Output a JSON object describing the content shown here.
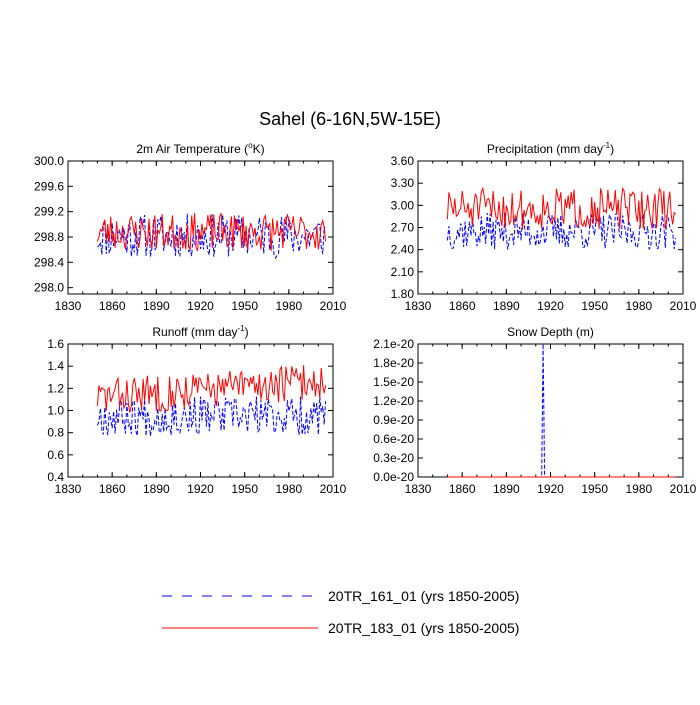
{
  "figure": {
    "title": "Sahel (6-16N,5W-15E)"
  },
  "legend": [
    {
      "label": "20TR_161_01 (yrs 1850-2005)",
      "color": "#0000ff",
      "dash": true
    },
    {
      "label": "20TR_183_01 (yrs 1850-2005)",
      "color": "#ff0000",
      "dash": false
    }
  ],
  "chart_data": [
    {
      "type": "line",
      "title_main": "2m Air Temperature (",
      "title_sup": "o",
      "title_after": "K)",
      "xlim": [
        1830,
        2010
      ],
      "ylim": [
        297.9,
        300.0
      ],
      "xticks": [
        1830,
        1860,
        1890,
        1920,
        1950,
        1980,
        2010
      ],
      "yticks": [
        298.0,
        298.4,
        298.8,
        299.2,
        299.6,
        300.0
      ],
      "ytick_labels": [
        "298.0",
        "298.4",
        "298.8",
        "299.2",
        "299.6",
        "300.0"
      ],
      "series": [
        {
          "name": "20TR_161_01",
          "mean": 298.82,
          "amp": 0.35,
          "seed": 11
        },
        {
          "name": "20TR_183_01",
          "mean": 298.88,
          "amp": 0.3,
          "seed": 23
        }
      ]
    },
    {
      "type": "line",
      "title_main": "Precipitation (mm day",
      "title_sup": "-1",
      "title_after": ")",
      "xlim": [
        1830,
        2010
      ],
      "ylim": [
        1.8,
        3.6
      ],
      "xticks": [
        1830,
        1860,
        1890,
        1920,
        1950,
        1980,
        2010
      ],
      "yticks": [
        1.8,
        2.1,
        2.4,
        2.7,
        3.0,
        3.3,
        3.6
      ],
      "ytick_labels": [
        "1.80",
        "2.10",
        "2.40",
        "2.70",
        "3.00",
        "3.30",
        "3.60"
      ],
      "series": [
        {
          "name": "20TR_161_01",
          "mean": 2.65,
          "amp": 0.25,
          "seed": 37
        },
        {
          "name": "20TR_183_01",
          "mean": 2.95,
          "amp": 0.28,
          "seed": 51
        }
      ]
    },
    {
      "type": "line",
      "title_main": "Runoff (mm day",
      "title_sup": "-1",
      "title_after": ")",
      "xlim": [
        1830,
        2010
      ],
      "ylim": [
        0.4,
        1.6
      ],
      "xticks": [
        1830,
        1860,
        1890,
        1920,
        1950,
        1980,
        2010
      ],
      "yticks": [
        0.4,
        0.6,
        0.8,
        1.0,
        1.2,
        1.4,
        1.6
      ],
      "ytick_labels": [
        "0.4",
        "0.6",
        "0.8",
        "1.0",
        "1.2",
        "1.4",
        "1.6"
      ],
      "series": [
        {
          "name": "20TR_161_01",
          "mean": 0.95,
          "amp": 0.18,
          "seed": 67
        },
        {
          "name": "20TR_183_01",
          "mean": 1.12,
          "amp": 0.17,
          "seed": 83
        }
      ]
    },
    {
      "type": "line",
      "title_main": "Snow Depth (m)",
      "title_sup": "",
      "title_after": "",
      "xlim": [
        1830,
        2010
      ],
      "ylim": [
        0,
        2.1e-20
      ],
      "xticks": [
        1830,
        1860,
        1890,
        1920,
        1950,
        1980,
        2010
      ],
      "yticks": [
        0,
        3e-21,
        6e-21,
        9e-21,
        1.2e-20,
        1.5e-20,
        1.8e-20,
        2.1e-20
      ],
      "ytick_labels": [
        "0.0e-20",
        "0.3e-20",
        "0.6e-20",
        "0.9e-20",
        "1.2e-20",
        "1.5e-20",
        "1.8e-20",
        "2.1e-20"
      ],
      "series": [
        {
          "name": "20TR_161_01",
          "spike_year": 1915,
          "spike_value": 2.1e-20,
          "base": 0
        },
        {
          "name": "20TR_183_01",
          "base": 0
        }
      ]
    }
  ]
}
